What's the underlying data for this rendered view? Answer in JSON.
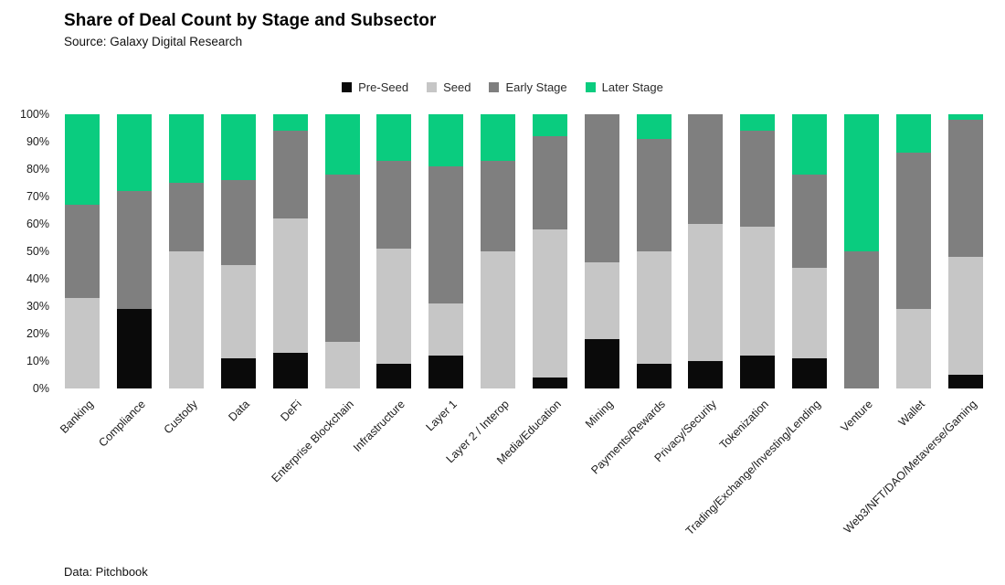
{
  "header": {
    "title": "Share of Deal Count by Stage and Subsector",
    "source": "Source: Galaxy Digital Research"
  },
  "footer": {
    "text": "Data: Pitchbook"
  },
  "chart_data": {
    "type": "bar",
    "stacked": true,
    "unit": "percent",
    "title": "Share of Deal Count by Stage and Subsector",
    "xlabel": "",
    "ylabel": "",
    "ylim": [
      0,
      100
    ],
    "grid": false,
    "legend_position": "top-center",
    "y_ticks": [
      "0%",
      "10%",
      "20%",
      "30%",
      "40%",
      "50%",
      "60%",
      "70%",
      "80%",
      "90%",
      "100%"
    ],
    "categories": [
      "Banking",
      "Compliance",
      "Custody",
      "Data",
      "DeFi",
      "Enterprise Blockchain",
      "Infrastructure",
      "Layer 1",
      "Layer 2 / Interop",
      "Media/Education",
      "Mining",
      "Payments/Rewards",
      "Privacy/Security",
      "Tokenization",
      "Trading/Exchange/Investing/Lending",
      "Venture",
      "Wallet",
      "Web3/NFT/DAO/Metaverse/Gaming"
    ],
    "series": [
      {
        "name": "Pre-Seed",
        "color": "#0a0a0a",
        "values": [
          0,
          29,
          0,
          11,
          13,
          0,
          9,
          12,
          0,
          4,
          18,
          9,
          10,
          12,
          11,
          0,
          0,
          5
        ]
      },
      {
        "name": "Seed",
        "color": "#c6c6c6",
        "values": [
          33,
          0,
          50,
          34,
          49,
          17,
          42,
          19,
          50,
          54,
          28,
          41,
          50,
          47,
          33,
          0,
          29,
          43
        ]
      },
      {
        "name": "Early Stage",
        "color": "#7f7f7f",
        "values": [
          34,
          43,
          25,
          31,
          32,
          61,
          32,
          50,
          33,
          34,
          54,
          41,
          40,
          35,
          34,
          50,
          57,
          50
        ]
      },
      {
        "name": "Later Stage",
        "color": "#0acc7f",
        "values": [
          33,
          28,
          25,
          24,
          6,
          22,
          17,
          19,
          17,
          8,
          0,
          9,
          0,
          6,
          22,
          50,
          14,
          2
        ]
      }
    ]
  }
}
